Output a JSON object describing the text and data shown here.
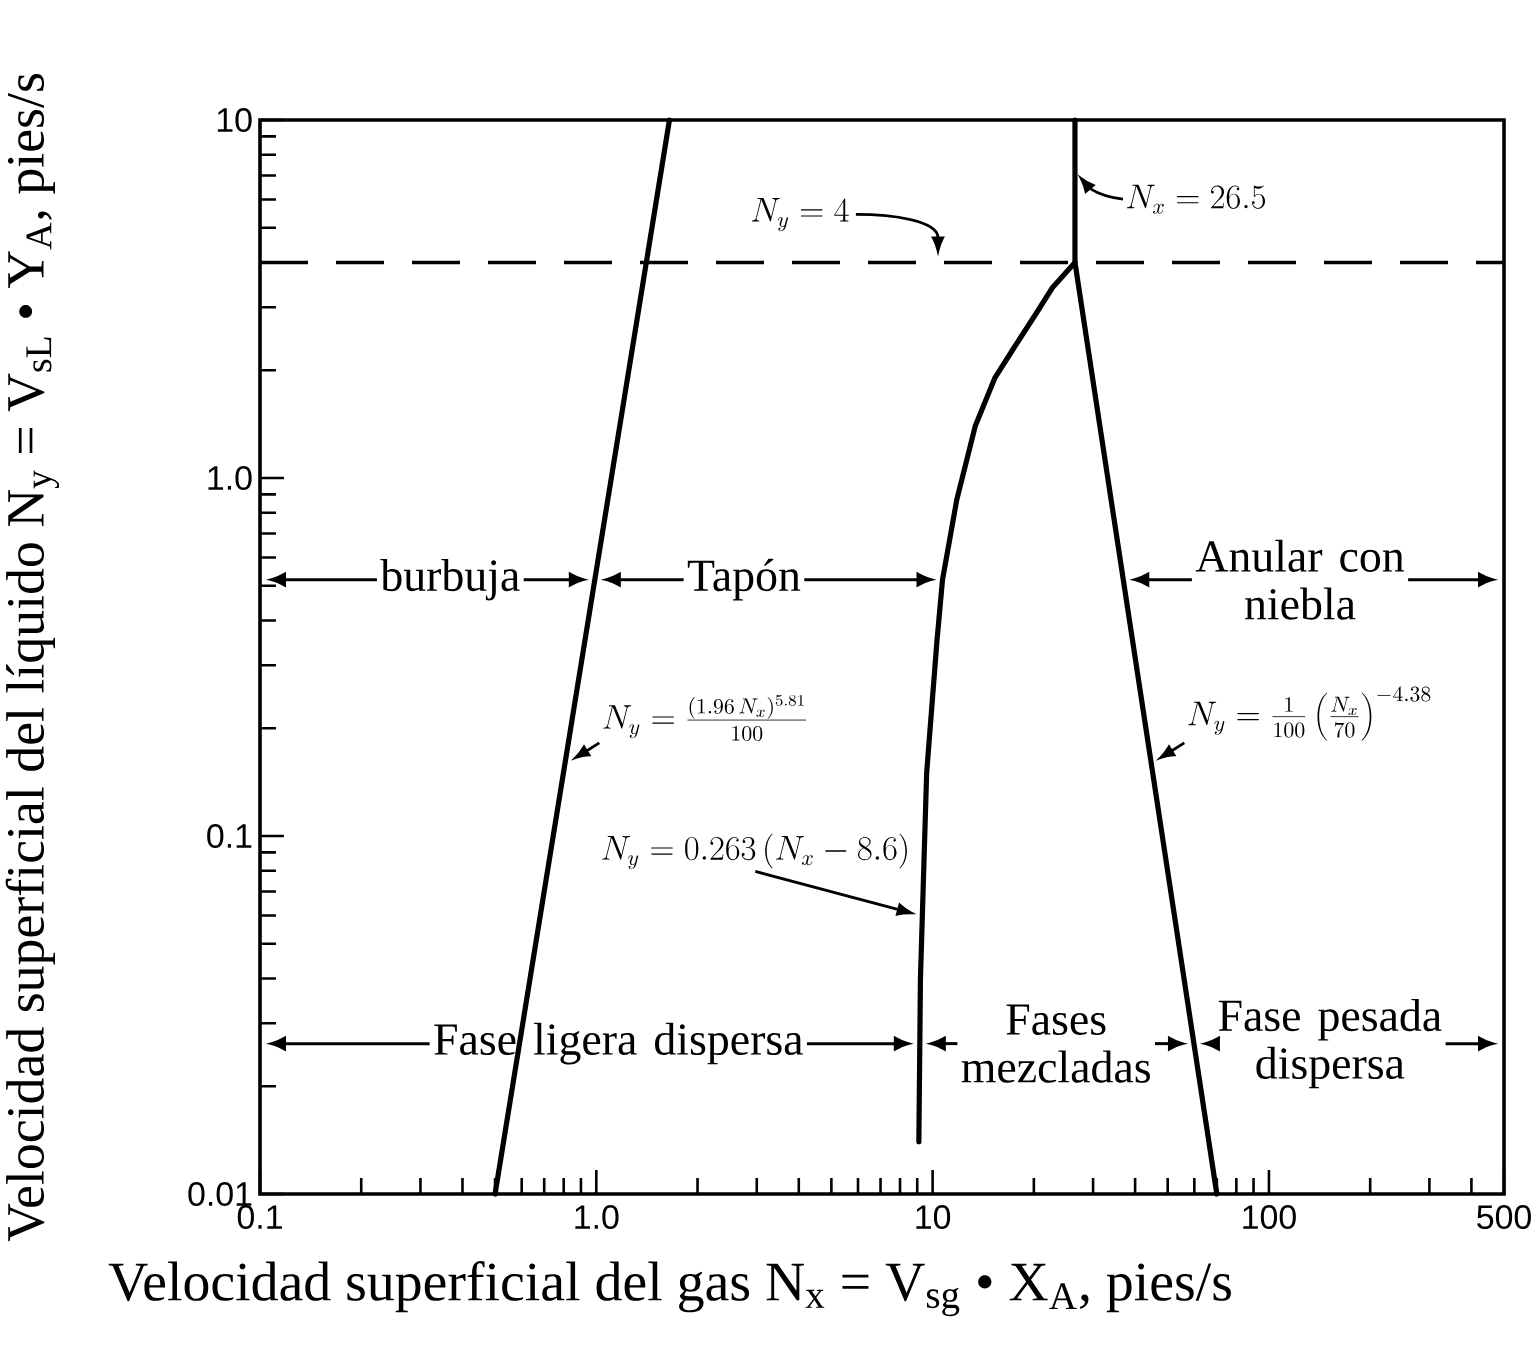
{
  "chart_data": {
    "type": "line",
    "xlabel": "Velocidad superficial del gas N$_{x}$ = V$_{sg}$ • X$_{A}$, pies/s",
    "ylabel": "Velocidad superficial del líquido N$_{y}$ = V$_{sL}$ • Y$_{A}$, pies/s",
    "log": "xy",
    "xlim": [
      0.1,
      500
    ],
    "ylim": [
      0.01,
      10
    ],
    "xticks": [
      0.1,
      {
        "value": 0.2,
        "label": null
      },
      {
        "value": 0.3,
        "label": null
      },
      {
        "value": 0.4,
        "label": null
      },
      {
        "value": 0.5,
        "label": null
      },
      {
        "value": 0.6,
        "label": null
      },
      {
        "value": 0.7,
        "label": null
      },
      {
        "value": 0.8,
        "label": null
      },
      {
        "value": 0.9,
        "label": null
      },
      {
        "value": 1,
        "label": "1.0"
      },
      {
        "value": 2,
        "label": null
      },
      {
        "value": 3,
        "label": null
      },
      {
        "value": 4,
        "label": null
      },
      {
        "value": 5,
        "label": null
      },
      {
        "value": 6,
        "label": null
      },
      {
        "value": 7,
        "label": null
      },
      {
        "value": 8,
        "label": null
      },
      {
        "value": 9,
        "label": null
      },
      10,
      {
        "value": 20,
        "label": null
      },
      {
        "value": 30,
        "label": null
      },
      {
        "value": 40,
        "label": null
      },
      {
        "value": 50,
        "label": null
      },
      {
        "value": 60,
        "label": null
      },
      {
        "value": 70,
        "label": null
      },
      {
        "value": 80,
        "label": null
      },
      {
        "value": 90,
        "label": null
      },
      100,
      {
        "value": 200,
        "label": null
      },
      {
        "value": 300,
        "label": null
      },
      {
        "value": 400,
        "label": null
      },
      500
    ],
    "yticks": [
      0.01,
      {
        "value": 0.02,
        "label": null
      },
      {
        "value": 0.03,
        "label": null
      },
      {
        "value": 0.04,
        "label": null
      },
      {
        "value": 0.05,
        "label": null
      },
      {
        "value": 0.06,
        "label": null
      },
      {
        "value": 0.07,
        "label": null
      },
      {
        "value": 0.08,
        "label": null
      },
      {
        "value": 0.09,
        "label": null
      },
      0.1,
      {
        "value": 0.2,
        "label": null
      },
      {
        "value": 0.3,
        "label": null
      },
      {
        "value": 0.4,
        "label": null
      },
      {
        "value": 0.5,
        "label": null
      },
      {
        "value": 0.6,
        "label": null
      },
      {
        "value": 0.7,
        "label": null
      },
      {
        "value": 0.8,
        "label": null
      },
      {
        "value": 0.9,
        "label": null
      },
      {
        "value": 1,
        "label": "1.0"
      },
      {
        "value": 2,
        "label": null
      },
      {
        "value": 3,
        "label": null
      },
      {
        "value": 4,
        "label": null
      },
      {
        "value": 5,
        "label": null
      },
      {
        "value": 6,
        "label": null
      },
      {
        "value": 7,
        "label": null
      },
      {
        "value": 8,
        "label": null
      },
      {
        "value": 9,
        "label": null
      },
      10
    ],
    "series": [
      {
        "color": "#000000",
        "x": [
          0.5,
          1.65
        ],
        "values": [
          0.01,
          10
        ]
      },
      {
        "color": "#000000",
        "x": [
          9.1,
          9.2,
          9.6,
          10.3,
          10.7,
          11.8,
          13.4,
          15.3,
          17.4,
          20.4,
          22.7,
          26.5
        ],
        "values": [
          0.014,
          0.04,
          0.15,
          0.35,
          0.52,
          0.87,
          1.4,
          1.9,
          2.3,
          2.9,
          3.4,
          4
        ]
      },
      {
        "color": "#000000",
        "x": [
          26.5,
          26.5,
          70
        ],
        "values": [
          10,
          4,
          0.01
        ]
      }
    ],
    "ref_lines": [
      {
        "axis": "y",
        "value": 4,
        "line_style": "dashed"
      }
    ],
    "annotations": [
      "burbuja",
      "Tapón",
      "Anular con niebla",
      "Fase ligera dispersa",
      "Fases mezcladas",
      "Fase pesada dispersa",
      {
        "text": "N_y = \\frac{(1.96\\,N_x)^{5.81}}{100}",
        "x": 0.82,
        "y": 0.16
      },
      {
        "text": "N_y = 0.263\\,(N_x - 8.6)",
        "x": 9.2,
        "y": 0.06
      },
      {
        "text": "N_y = \\frac{1}{100}\\left(\\frac{N_x}{70}\\right)^{-4.38}",
        "x": 45,
        "y": 0.16
      },
      {
        "text": "N_x = 26.5",
        "x": 26.5,
        "y": 7.2
      },
      "N_y = 4"
    ]
  }
}
